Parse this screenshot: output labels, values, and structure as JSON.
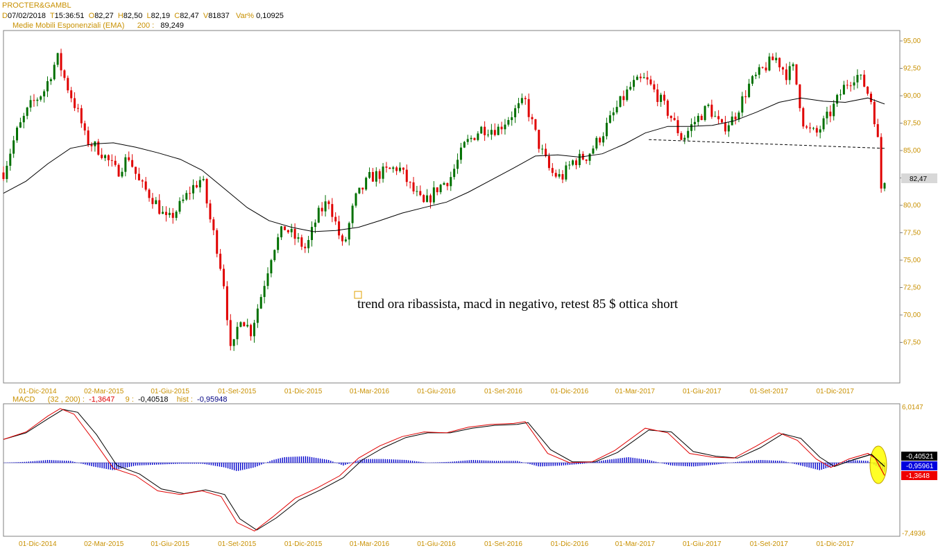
{
  "header": {
    "symbol": "PROCTER&GAMBL",
    "d_label": "D",
    "date": "07/02/2018",
    "t_label": "T",
    "time": "15:36:51",
    "o_label": "O",
    "open": "82,27",
    "h_label": "H",
    "high": "82,50",
    "l_label": "L",
    "low": "82,19",
    "c_label": "C",
    "close": "82,47",
    "v_label": "V",
    "volume": "81837",
    "var_label": "Var%",
    "var": "0,10925",
    "ema_label": "Medie Mobili Esponenziali (EMA)",
    "ema_period": "200 :",
    "ema_value": "89,249"
  },
  "macd_header": {
    "label": "MACD",
    "params": "(32 , 200) :",
    "macd_value": "-1,3647",
    "signal_label": "9 :",
    "signal_value": "-0,40518",
    "hist_label": "hist :",
    "hist_value": "-0,95948"
  },
  "annotation": "trend ora ribassista, macd in negativo, retest 85 $ ottica short",
  "colors": {
    "up": "#007000",
    "down": "#e00000",
    "axis_text": "#c89000",
    "ema": "#000000",
    "macd": "#e00000",
    "signal": "#000000",
    "hist": "#0000cc",
    "highlight": "#ffff00"
  },
  "chart_data": [
    {
      "type": "candlestick",
      "title": "PROCTER&GAMBL",
      "x_range": [
        "2014-10-15",
        "2018-02-07"
      ],
      "ylim": [
        65,
        96
      ],
      "y_ticks": [
        "95,00",
        "92,50",
        "90,00",
        "87,50",
        "85,00",
        "82,50",
        "80,00",
        "77,50",
        "75,00",
        "72,50",
        "70,00",
        "67,50"
      ],
      "x_ticks": [
        "01-Dic-2014",
        "02-Mar-2015",
        "01-Giu-2015",
        "01-Set-2015",
        "01-Dic-2015",
        "01-Mar-2016",
        "01-Giu-2016",
        "01-Set-2016",
        "01-Dic-2016",
        "01-Mar-2017",
        "01-Giu-2017",
        "01-Set-2017",
        "01-Dic-2017"
      ],
      "last_price_label": "82,47",
      "price_path": [
        [
          "2014-10-15",
          83.0
        ],
        [
          "2014-11-01",
          86.5
        ],
        [
          "2014-11-20",
          89.0
        ],
        [
          "2014-12-10",
          90.5
        ],
        [
          "2014-12-28",
          93.5
        ],
        [
          "2015-01-10",
          91.0
        ],
        [
          "2015-01-28",
          88.0
        ],
        [
          "2015-02-05",
          86.0
        ],
        [
          "2015-02-25",
          85.0
        ],
        [
          "2015-03-20",
          83.0
        ],
        [
          "2015-04-05",
          84.5
        ],
        [
          "2015-04-20",
          82.0
        ],
        [
          "2015-05-10",
          80.5
        ],
        [
          "2015-05-28",
          78.5
        ],
        [
          "2015-06-15",
          80.0
        ],
        [
          "2015-06-30",
          81.5
        ],
        [
          "2015-07-15",
          82.5
        ],
        [
          "2015-07-25",
          79.0
        ],
        [
          "2015-08-05",
          76.0
        ],
        [
          "2015-08-15",
          72.5
        ],
        [
          "2015-08-24",
          66.0
        ],
        [
          "2015-09-05",
          70.0
        ],
        [
          "2015-09-20",
          68.5
        ],
        [
          "2015-10-05",
          72.0
        ],
        [
          "2015-10-20",
          76.0
        ],
        [
          "2015-11-05",
          78.0
        ],
        [
          "2015-11-20",
          77.0
        ],
        [
          "2015-12-05",
          76.0
        ],
        [
          "2015-12-20",
          79.0
        ],
        [
          "2016-01-05",
          80.5
        ],
        [
          "2016-01-25",
          76.0
        ],
        [
          "2016-02-10",
          80.5
        ],
        [
          "2016-03-01",
          82.5
        ],
        [
          "2016-03-20",
          83.0
        ],
        [
          "2016-04-10",
          83.5
        ],
        [
          "2016-04-28",
          81.5
        ],
        [
          "2016-05-15",
          80.0
        ],
        [
          "2016-06-01",
          81.5
        ],
        [
          "2016-06-20",
          82.5
        ],
        [
          "2016-07-10",
          85.5
        ],
        [
          "2016-08-01",
          87.0
        ],
        [
          "2016-08-25",
          87.0
        ],
        [
          "2016-09-15",
          88.5
        ],
        [
          "2016-10-01",
          89.5
        ],
        [
          "2016-10-20",
          85.5
        ],
        [
          "2016-11-05",
          83.0
        ],
        [
          "2016-11-20",
          82.5
        ],
        [
          "2016-12-05",
          84.0
        ],
        [
          "2016-12-25",
          84.5
        ],
        [
          "2017-01-15",
          86.5
        ],
        [
          "2017-02-05",
          89.0
        ],
        [
          "2017-02-25",
          91.0
        ],
        [
          "2017-03-15",
          91.5
        ],
        [
          "2017-04-01",
          90.0
        ],
        [
          "2017-04-20",
          88.0
        ],
        [
          "2017-05-05",
          86.0
        ],
        [
          "2017-05-20",
          87.5
        ],
        [
          "2017-06-10",
          89.0
        ],
        [
          "2017-06-28",
          87.0
        ],
        [
          "2017-07-15",
          88.0
        ],
        [
          "2017-08-05",
          91.0
        ],
        [
          "2017-08-25",
          92.5
        ],
        [
          "2017-09-10",
          93.5
        ],
        [
          "2017-09-25",
          92.0
        ],
        [
          "2017-10-05",
          92.5
        ],
        [
          "2017-10-20",
          87.0
        ],
        [
          "2017-11-05",
          86.5
        ],
        [
          "2017-11-25",
          88.5
        ],
        [
          "2017-12-15",
          91.0
        ],
        [
          "2017-12-30",
          92.0
        ],
        [
          "2018-01-10",
          91.0
        ],
        [
          "2018-01-20",
          89.5
        ],
        [
          "2018-01-28",
          86.5
        ],
        [
          "2018-02-03",
          81.0
        ],
        [
          "2018-02-07",
          82.47
        ]
      ],
      "ema200": [
        [
          "2014-10-15",
          81.1
        ],
        [
          "2014-11-15",
          82.2
        ],
        [
          "2014-12-15",
          83.8
        ],
        [
          "2015-01-15",
          85.2
        ],
        [
          "2015-02-15",
          85.6
        ],
        [
          "2015-03-15",
          85.7
        ],
        [
          "2015-04-15",
          85.3
        ],
        [
          "2015-05-15",
          84.8
        ],
        [
          "2015-06-15",
          84.2
        ],
        [
          "2015-07-15",
          83.2
        ],
        [
          "2015-08-15",
          81.5
        ],
        [
          "2015-09-15",
          79.8
        ],
        [
          "2015-10-15",
          78.6
        ],
        [
          "2015-11-15",
          78.0
        ],
        [
          "2015-12-15",
          77.6
        ],
        [
          "2016-01-15",
          77.7
        ],
        [
          "2016-02-15",
          78.0
        ],
        [
          "2016-03-15",
          78.6
        ],
        [
          "2016-04-15",
          79.3
        ],
        [
          "2016-05-15",
          79.8
        ],
        [
          "2016-06-15",
          80.3
        ],
        [
          "2016-07-15",
          81.2
        ],
        [
          "2016-08-15",
          82.3
        ],
        [
          "2016-09-15",
          83.4
        ],
        [
          "2016-10-15",
          84.5
        ],
        [
          "2016-11-15",
          84.6
        ],
        [
          "2016-12-15",
          84.4
        ],
        [
          "2017-01-15",
          84.7
        ],
        [
          "2017-02-15",
          85.6
        ],
        [
          "2017-03-15",
          86.6
        ],
        [
          "2017-04-15",
          87.2
        ],
        [
          "2017-05-15",
          87.2
        ],
        [
          "2017-06-15",
          87.3
        ],
        [
          "2017-07-15",
          87.7
        ],
        [
          "2017-08-15",
          88.5
        ],
        [
          "2017-09-15",
          89.4
        ],
        [
          "2017-10-15",
          89.8
        ],
        [
          "2017-11-15",
          89.5
        ],
        [
          "2017-12-15",
          89.4
        ],
        [
          "2018-01-15",
          89.8
        ],
        [
          "2018-02-07",
          89.249
        ]
      ],
      "neckline": [
        [
          "2017-03-20",
          86.0
        ],
        [
          "2018-02-07",
          85.2
        ]
      ]
    },
    {
      "type": "line",
      "title": "MACD",
      "ylim": [
        -7.4936,
        6.0147
      ],
      "y_ticks": [
        "6,0147",
        "-7,4936"
      ],
      "x_ticks": [
        "01-Dic-2014",
        "02-Mar-2015",
        "01-Giu-2015",
        "01-Set-2015",
        "01-Dic-2015",
        "01-Mar-2016",
        "01-Giu-2016",
        "01-Set-2016",
        "01-Dic-2016",
        "01-Mar-2017",
        "01-Giu-2017",
        "01-Set-2017",
        "01-Dic-2017"
      ],
      "value_labels": [
        "-0,40521",
        "-0,95961",
        "-1,3648"
      ],
      "series": [
        {
          "name": "MACD",
          "values": [
            [
              "2014-10-15",
              2.5
            ],
            [
              "2014-11-15",
              3.3
            ],
            [
              "2014-12-15",
              5.0
            ],
            [
              "2015-01-01",
              5.8
            ],
            [
              "2015-01-20",
              5.2
            ],
            [
              "2015-02-15",
              2.5
            ],
            [
              "2015-03-15",
              -0.6
            ],
            [
              "2015-04-15",
              -1.4
            ],
            [
              "2015-05-15",
              -3.0
            ],
            [
              "2015-06-15",
              -3.4
            ],
            [
              "2015-07-15",
              -3.0
            ],
            [
              "2015-08-10",
              -3.6
            ],
            [
              "2015-09-01",
              -6.4
            ],
            [
              "2015-09-25",
              -7.3
            ],
            [
              "2015-10-20",
              -5.8
            ],
            [
              "2015-11-20",
              -3.8
            ],
            [
              "2015-12-20",
              -2.7
            ],
            [
              "2016-01-20",
              -1.4
            ],
            [
              "2016-02-15",
              0.5
            ],
            [
              "2016-03-15",
              1.8
            ],
            [
              "2016-04-15",
              2.8
            ],
            [
              "2016-05-15",
              3.3
            ],
            [
              "2016-06-15",
              3.2
            ],
            [
              "2016-07-15",
              3.8
            ],
            [
              "2016-08-15",
              4.1
            ],
            [
              "2016-09-15",
              4.2
            ],
            [
              "2016-10-01",
              4.4
            ],
            [
              "2016-11-01",
              1.0
            ],
            [
              "2016-12-01",
              0.0
            ],
            [
              "2017-01-01",
              0.1
            ],
            [
              "2017-02-01",
              1.3
            ],
            [
              "2017-03-15",
              3.7
            ],
            [
              "2017-04-15",
              3.2
            ],
            [
              "2017-05-15",
              1.0
            ],
            [
              "2017-06-15",
              0.6
            ],
            [
              "2017-07-15",
              0.5
            ],
            [
              "2017-08-15",
              1.8
            ],
            [
              "2017-09-15",
              3.2
            ],
            [
              "2017-10-10",
              2.4
            ],
            [
              "2017-11-05",
              0.4
            ],
            [
              "2017-11-25",
              -0.5
            ],
            [
              "2017-12-20",
              0.4
            ],
            [
              "2018-01-15",
              1.0
            ],
            [
              "2018-01-25",
              0.5
            ],
            [
              "2018-02-07",
              -1.3647
            ]
          ]
        },
        {
          "name": "9",
          "values": [
            [
              "2014-10-15",
              2.5
            ],
            [
              "2014-11-15",
              3.2
            ],
            [
              "2014-12-15",
              4.7
            ],
            [
              "2015-01-05",
              5.7
            ],
            [
              "2015-01-25",
              5.4
            ],
            [
              "2015-02-20",
              3.0
            ],
            [
              "2015-03-20",
              -0.3
            ],
            [
              "2015-04-20",
              -1.2
            ],
            [
              "2015-05-20",
              -2.8
            ],
            [
              "2015-06-20",
              -3.3
            ],
            [
              "2015-07-20",
              -2.9
            ],
            [
              "2015-08-15",
              -3.4
            ],
            [
              "2015-09-05",
              -6.0
            ],
            [
              "2015-09-28",
              -7.2
            ],
            [
              "2015-10-25",
              -5.9
            ],
            [
              "2015-11-25",
              -4.0
            ],
            [
              "2015-12-25",
              -2.9
            ],
            [
              "2016-01-25",
              -1.6
            ],
            [
              "2016-02-20",
              0.3
            ],
            [
              "2016-03-20",
              1.6
            ],
            [
              "2016-04-20",
              2.7
            ],
            [
              "2016-05-20",
              3.2
            ],
            [
              "2016-06-20",
              3.2
            ],
            [
              "2016-07-20",
              3.7
            ],
            [
              "2016-08-20",
              4.0
            ],
            [
              "2016-09-20",
              4.1
            ],
            [
              "2016-10-05",
              4.3
            ],
            [
              "2016-11-05",
              1.4
            ],
            [
              "2016-12-05",
              0.1
            ],
            [
              "2017-01-05",
              0.1
            ],
            [
              "2017-02-05",
              1.1
            ],
            [
              "2017-03-20",
              3.5
            ],
            [
              "2017-04-20",
              3.3
            ],
            [
              "2017-05-20",
              1.2
            ],
            [
              "2017-06-20",
              0.7
            ],
            [
              "2017-07-20",
              0.5
            ],
            [
              "2017-08-20",
              1.6
            ],
            [
              "2017-09-20",
              3.1
            ],
            [
              "2017-10-15",
              2.6
            ],
            [
              "2017-11-10",
              0.6
            ],
            [
              "2017-11-30",
              -0.4
            ],
            [
              "2017-12-25",
              0.3
            ],
            [
              "2018-01-20",
              0.9
            ],
            [
              "2018-02-07",
              -0.40518
            ]
          ]
        },
        {
          "name": "hist",
          "values": [
            [
              "2014-10-15",
              0.0
            ],
            [
              "2014-11-15",
              0.1
            ],
            [
              "2014-12-15",
              0.3
            ],
            [
              "2015-01-15",
              0.2
            ],
            [
              "2015-02-15",
              -0.4
            ],
            [
              "2015-03-15",
              -0.8
            ],
            [
              "2015-04-15",
              -0.3
            ],
            [
              "2015-05-15",
              -0.2
            ],
            [
              "2015-06-15",
              -0.1
            ],
            [
              "2015-07-15",
              -0.1
            ],
            [
              "2015-08-15",
              -0.5
            ],
            [
              "2015-09-01",
              -0.9
            ],
            [
              "2015-09-25",
              -0.5
            ],
            [
              "2015-10-20",
              0.3
            ],
            [
              "2015-11-05",
              0.6
            ],
            [
              "2015-12-05",
              0.7
            ],
            [
              "2016-01-05",
              0.3
            ],
            [
              "2016-01-25",
              -0.3
            ],
            [
              "2016-02-20",
              0.4
            ],
            [
              "2016-03-20",
              0.4
            ],
            [
              "2016-04-20",
              0.3
            ],
            [
              "2016-05-20",
              0.0
            ],
            [
              "2016-06-20",
              0.1
            ],
            [
              "2016-07-20",
              0.3
            ],
            [
              "2016-08-20",
              0.2
            ],
            [
              "2016-09-20",
              0.2
            ],
            [
              "2016-10-20",
              -0.4
            ],
            [
              "2016-11-20",
              -0.3
            ],
            [
              "2016-12-20",
              -0.1
            ],
            [
              "2017-01-20",
              0.3
            ],
            [
              "2017-02-20",
              0.6
            ],
            [
              "2017-03-20",
              0.3
            ],
            [
              "2017-04-20",
              -0.3
            ],
            [
              "2017-05-20",
              -0.4
            ],
            [
              "2017-06-20",
              -0.2
            ],
            [
              "2017-07-20",
              0.1
            ],
            [
              "2017-08-20",
              0.3
            ],
            [
              "2017-09-20",
              0.2
            ],
            [
              "2017-10-20",
              -0.4
            ],
            [
              "2017-11-10",
              -0.8
            ],
            [
              "2017-11-30",
              -0.3
            ],
            [
              "2017-12-20",
              0.3
            ],
            [
              "2018-01-15",
              0.2
            ],
            [
              "2018-01-28",
              -0.4
            ],
            [
              "2018-02-07",
              -0.95948
            ]
          ]
        }
      ]
    }
  ]
}
